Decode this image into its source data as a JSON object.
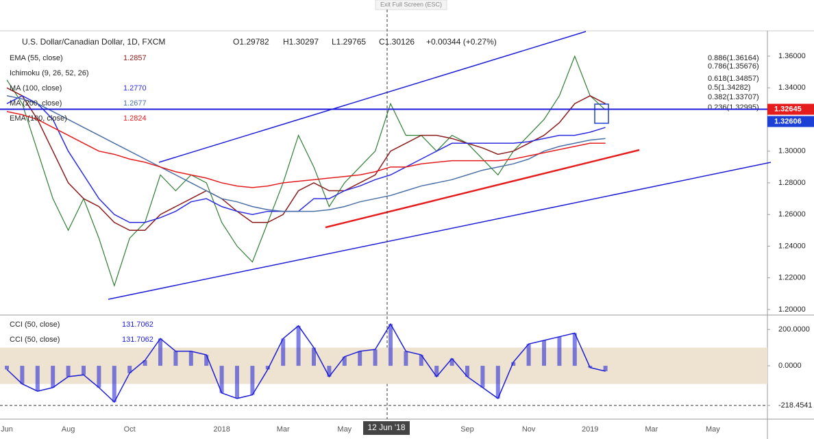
{
  "exit_fullscreen": "Exit Full Screen (ESC)",
  "header": {
    "symbol": "U.S. Dollar/Canadian Dollar, 1D, FXCM",
    "open": "O1.29782",
    "high": "H1.30297",
    "low": "L1.29765",
    "close": "C1.30126",
    "change": "+0.00344 (+0.27%)",
    "ichimoku": "Ichimoku (9, 26, 52, 26)"
  },
  "crosshair_label": "12 Jun '18",
  "fib_labels": [
    "0.886(1.36164)",
    "0.786(1.35676)",
    "0.618(1.34857)",
    "0.5(1.34282)",
    "0.382(1.33707)",
    "0.236(1.32995)"
  ],
  "chart_data": [
    {
      "type": "line",
      "categories": [
        "Jun",
        null,
        null,
        null,
        "Aug",
        null,
        null,
        null,
        "Oct",
        null,
        null,
        null,
        null,
        null,
        "2018",
        null,
        null,
        null,
        "Mar",
        null,
        null,
        null,
        "May",
        null,
        null,
        null,
        null,
        null,
        null,
        null,
        "Sep",
        null,
        null,
        null,
        "Nov",
        null,
        null,
        null,
        "2019",
        null,
        null,
        null,
        "Mar",
        null,
        null,
        null,
        "May",
        null,
        null,
        null
      ],
      "ylim": [
        1.1965,
        1.376
      ],
      "yticks": [
        {
          "value": 1.2,
          "label": "1.20000"
        },
        {
          "value": 1.22,
          "label": "1.22000"
        },
        {
          "value": 1.24,
          "label": "1.24000"
        },
        {
          "value": 1.26,
          "label": "1.26000"
        },
        {
          "value": 1.28,
          "label": "1.28000"
        },
        {
          "value": 1.3,
          "label": "1.30000"
        },
        {
          "value": 1.32,
          "label": "1.32000"
        },
        {
          "value": 1.34,
          "label": "1.34000"
        },
        {
          "value": 1.36,
          "label": "1.36000"
        }
      ],
      "price_tags": [
        {
          "value": 1.32645,
          "label": "1.32645",
          "color": "#e51c1c"
        },
        {
          "value": 1.32606,
          "label": "1.32606",
          "color": "#1c3fd6"
        }
      ],
      "series": [
        {
          "color": "#2e7d32",
          "values": [
            1.345,
            1.33,
            1.3,
            1.27,
            1.25,
            1.27,
            1.245,
            1.215,
            1.245,
            1.255,
            1.285,
            1.275,
            1.285,
            1.28,
            1.255,
            1.24,
            1.23,
            1.255,
            1.28,
            1.31,
            1.29,
            1.265,
            1.28,
            1.29,
            1.3,
            1.33,
            1.31,
            1.31,
            1.3,
            1.31,
            1.305,
            1.295,
            1.285,
            1.3,
            1.31,
            1.32,
            1.335,
            1.36,
            1.335,
            1.326,
            null,
            null,
            null,
            null,
            null,
            null,
            null,
            null,
            null,
            null
          ]
        },
        {
          "name": "EMA (55, close)",
          "value_label": "1.2857",
          "color": "#8b1a1a",
          "values": [
            1.34,
            1.335,
            1.32,
            1.3,
            1.28,
            1.27,
            1.265,
            1.255,
            1.25,
            1.25,
            1.26,
            1.265,
            1.27,
            1.275,
            1.27,
            1.262,
            1.255,
            1.255,
            1.26,
            1.275,
            1.28,
            1.275,
            1.275,
            1.28,
            1.285,
            1.3,
            1.305,
            1.31,
            1.31,
            1.308,
            1.305,
            1.302,
            1.298,
            1.3,
            1.305,
            1.31,
            1.318,
            1.33,
            1.335,
            1.33,
            null,
            null,
            null,
            null,
            null,
            null,
            null,
            null,
            null,
            null
          ]
        },
        {
          "name": "MA (100, close)",
          "value_label": "1.2770",
          "color": "#2a2adf",
          "values": [
            1.33,
            1.335,
            1.33,
            1.32,
            1.3,
            1.285,
            1.27,
            1.26,
            1.255,
            1.255,
            1.258,
            1.262,
            1.268,
            1.27,
            1.265,
            1.262,
            1.26,
            1.262,
            1.262,
            1.262,
            1.27,
            1.27,
            1.275,
            1.278,
            1.282,
            1.285,
            1.29,
            1.295,
            1.3,
            1.305,
            1.305,
            1.305,
            1.305,
            1.305,
            1.306,
            1.308,
            1.31,
            1.31,
            1.312,
            1.315,
            null,
            null,
            null,
            null,
            null,
            null,
            null,
            null,
            null,
            null
          ]
        },
        {
          "name": "MA (200, close)",
          "value_label": "1.2677",
          "color": "#4a6fa5",
          "values": [
            1.335,
            1.333,
            1.33,
            1.325,
            1.32,
            1.315,
            1.31,
            1.305,
            1.3,
            1.295,
            1.29,
            1.285,
            1.28,
            1.275,
            1.27,
            1.268,
            1.265,
            1.263,
            1.262,
            1.262,
            1.262,
            1.263,
            1.265,
            1.268,
            1.27,
            1.272,
            1.275,
            1.278,
            1.28,
            1.282,
            1.285,
            1.288,
            1.29,
            1.292,
            1.295,
            1.3,
            1.303,
            1.305,
            1.307,
            1.308,
            null,
            null,
            null,
            null,
            null,
            null,
            null,
            null,
            null,
            null
          ]
        },
        {
          "name": "EMA (100, close)",
          "value_label": "1.2824",
          "color": "#e31a1c",
          "values": [
            1.325,
            1.323,
            1.32,
            1.315,
            1.31,
            1.305,
            1.3,
            1.298,
            1.295,
            1.293,
            1.29,
            1.287,
            1.285,
            1.283,
            1.28,
            1.278,
            1.277,
            1.278,
            1.28,
            1.281,
            1.282,
            1.283,
            1.284,
            1.285,
            1.287,
            1.29,
            1.29,
            1.292,
            1.293,
            1.294,
            1.294,
            1.294,
            1.294,
            1.295,
            1.297,
            1.299,
            1.301,
            1.303,
            1.305,
            1.305,
            null,
            null,
            null,
            null,
            null,
            null,
            null,
            null,
            null,
            null
          ]
        }
      ]
    },
    {
      "type": "area",
      "ylim": [
        -294,
        272
      ],
      "yticks": [
        {
          "value": 200,
          "label": "200.0000"
        },
        {
          "value": 0,
          "label": "0.0000"
        },
        {
          "value": -218.4541,
          "label": "-218.4541"
        }
      ],
      "band": [
        100,
        -100
      ],
      "legend": [
        {
          "name": "CCI (50, close)",
          "value_label": "131.7062"
        },
        {
          "name": "CCI (50, close)",
          "value_label": "131.7062"
        }
      ],
      "color": "#1c1cd6",
      "values": [
        -20,
        -100,
        -140,
        -120,
        -60,
        -50,
        -120,
        -200,
        -40,
        30,
        150,
        80,
        80,
        60,
        -150,
        -180,
        -160,
        -20,
        150,
        220,
        100,
        -60,
        50,
        80,
        90,
        230,
        80,
        60,
        -60,
        40,
        -60,
        -120,
        -180,
        20,
        120,
        140,
        160,
        180,
        -10,
        -30,
        null,
        null,
        null,
        null,
        null,
        null,
        null,
        null,
        null,
        null
      ]
    }
  ]
}
